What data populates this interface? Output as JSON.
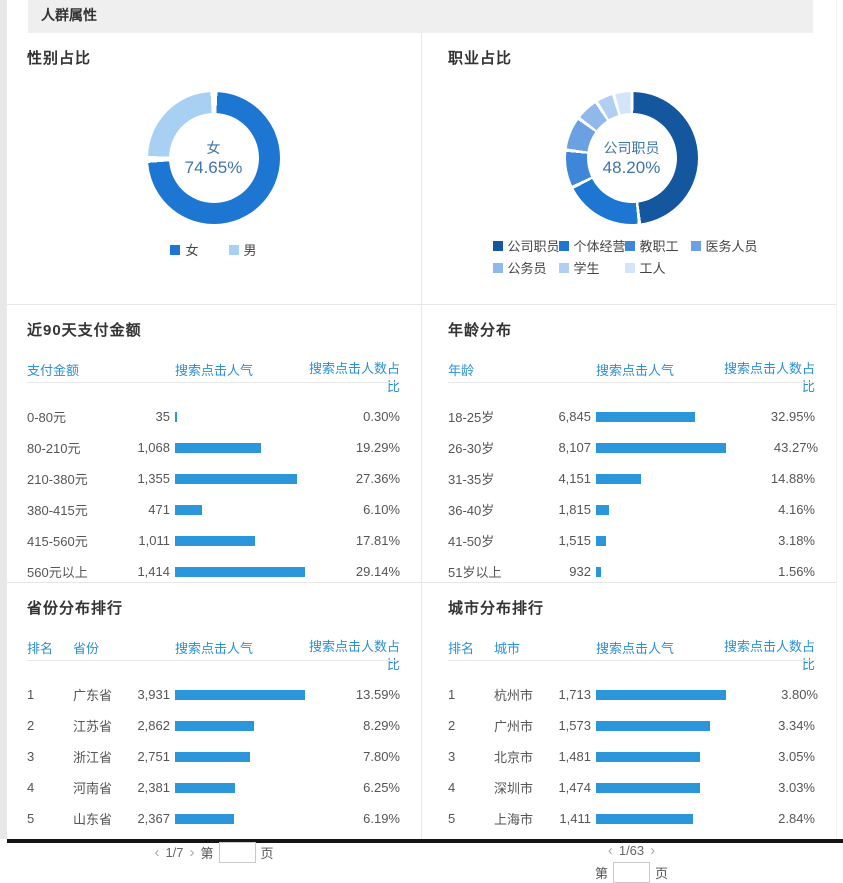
{
  "page": {
    "header_title": "人群属性"
  },
  "theme": {
    "bar_color": "#2b96d9",
    "table_header_text_color": "#2b8fd6",
    "section_title_color": "#333333",
    "donut_center_text_color": "#3e74ab",
    "band_background": "#efefef",
    "divider_color": "#e6e6e6"
  },
  "chart_data": [
    {
      "type": "pie",
      "title": "性别占比",
      "labels": [
        "女",
        "男"
      ],
      "values": [
        74.65,
        25.35
      ],
      "colors": [
        "#1d76d2",
        "#a8d0f3"
      ],
      "center_label": "女",
      "center_value": "74.65%",
      "legend_position": "bottom"
    },
    {
      "type": "pie",
      "title": "职业占比",
      "labels": [
        "公司职员",
        "个体经营",
        "教职工",
        "医务人员",
        "公务员",
        "学生",
        "工人"
      ],
      "values": [
        48.2,
        19.5,
        9.2,
        8.3,
        5.8,
        4.5,
        4.5
      ],
      "colors": [
        "#14579f",
        "#1d76d2",
        "#3e86d8",
        "#6ba0e2",
        "#8fb9ea",
        "#b0cff2",
        "#d3e5f8"
      ],
      "center_label": "公司职员",
      "center_value": "48.20%",
      "legend_position": "bottom"
    },
    {
      "type": "table",
      "title": "近90天支付金额",
      "columns": [
        "支付金额",
        "搜索点击人气",
        "搜索点击人数占比"
      ],
      "rows": [
        {
          "label": "0-80元",
          "popularity": "35",
          "percent": "0.30%"
        },
        {
          "label": "80-210元",
          "popularity": "1,068",
          "percent": "19.29%"
        },
        {
          "label": "210-380元",
          "popularity": "1,355",
          "percent": "27.36%"
        },
        {
          "label": "380-415元",
          "popularity": "471",
          "percent": "6.10%"
        },
        {
          "label": "415-560元",
          "popularity": "1,011",
          "percent": "17.81%"
        },
        {
          "label": "560元以上",
          "popularity": "1,414",
          "percent": "29.14%"
        }
      ]
    },
    {
      "type": "table",
      "title": "年龄分布",
      "columns": [
        "年龄",
        "搜索点击人气",
        "搜索点击人数占比"
      ],
      "rows": [
        {
          "label": "18-25岁",
          "popularity": "6,845",
          "percent": "32.95%"
        },
        {
          "label": "26-30岁",
          "popularity": "8,107",
          "percent": "43.27%"
        },
        {
          "label": "31-35岁",
          "popularity": "4,151",
          "percent": "14.88%"
        },
        {
          "label": "36-40岁",
          "popularity": "1,815",
          "percent": "4.16%"
        },
        {
          "label": "41-50岁",
          "popularity": "1,515",
          "percent": "3.18%"
        },
        {
          "label": "51岁以上",
          "popularity": "932",
          "percent": "1.56%"
        }
      ]
    },
    {
      "type": "table",
      "title": "省份分布排行",
      "columns": [
        "排名",
        "省份",
        "搜索点击人气",
        "搜索点击人数占比"
      ],
      "rows": [
        {
          "rank": "1",
          "label": "广东省",
          "popularity": "3,931",
          "percent": "13.59%"
        },
        {
          "rank": "2",
          "label": "江苏省",
          "popularity": "2,862",
          "percent": "8.29%"
        },
        {
          "rank": "3",
          "label": "浙江省",
          "popularity": "2,751",
          "percent": "7.80%"
        },
        {
          "rank": "4",
          "label": "河南省",
          "popularity": "2,381",
          "percent": "6.25%"
        },
        {
          "rank": "5",
          "label": "山东省",
          "popularity": "2,367",
          "percent": "6.19%"
        }
      ],
      "pagination": {
        "prev": "‹",
        "page_label": "1/7",
        "next": "›",
        "jump_prefix": "第",
        "jump_suffix": "页",
        "layout": "one-line"
      }
    },
    {
      "type": "table",
      "title": "城市分布排行",
      "columns": [
        "排名",
        "城市",
        "搜索点击人气",
        "搜索点击人数占比"
      ],
      "rows": [
        {
          "rank": "1",
          "label": "杭州市",
          "popularity": "1,713",
          "percent": "3.80%"
        },
        {
          "rank": "2",
          "label": "广州市",
          "popularity": "1,573",
          "percent": "3.34%"
        },
        {
          "rank": "3",
          "label": "北京市",
          "popularity": "1,481",
          "percent": "3.05%"
        },
        {
          "rank": "4",
          "label": "深圳市",
          "popularity": "1,474",
          "percent": "3.03%"
        },
        {
          "rank": "5",
          "label": "上海市",
          "popularity": "1,411",
          "percent": "2.84%"
        }
      ],
      "pagination": {
        "prev": "‹",
        "page_label": "1/63",
        "next": "›",
        "jump_prefix": "第",
        "jump_suffix": "页",
        "layout": "two-line"
      }
    }
  ]
}
